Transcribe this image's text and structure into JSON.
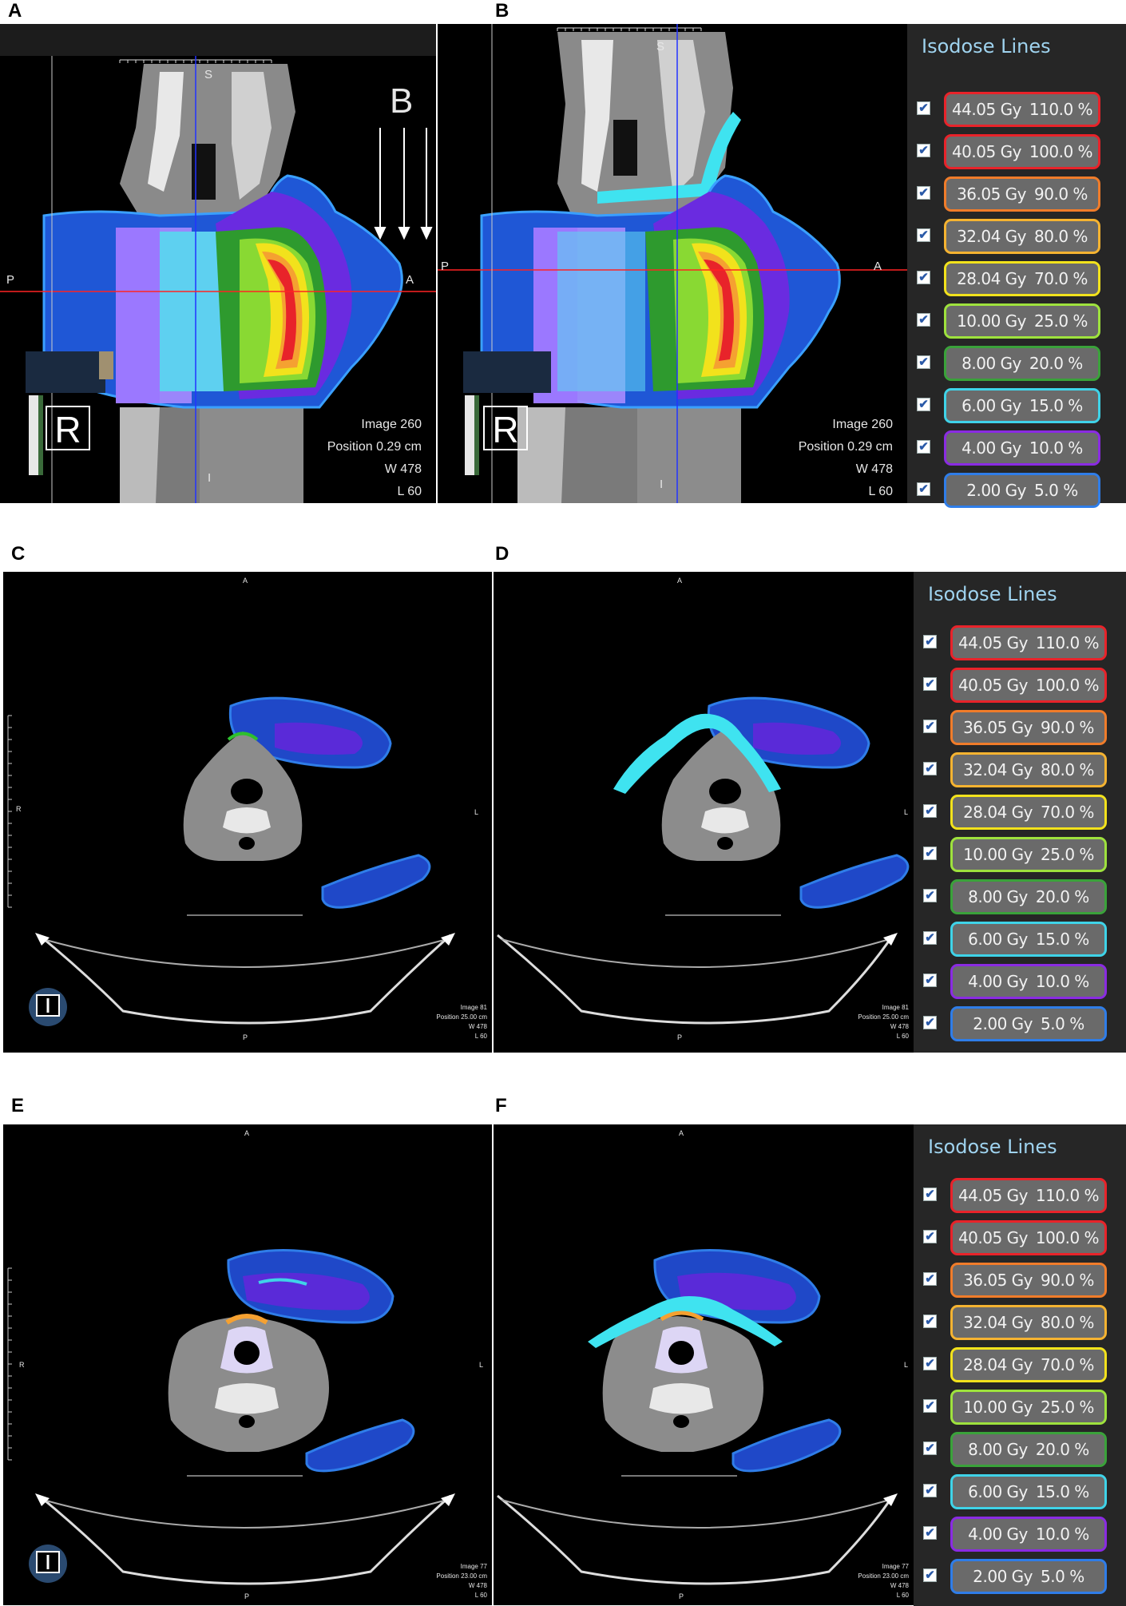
{
  "panels": [
    {
      "id": "A",
      "letter": "A"
    },
    {
      "id": "B",
      "letter": "B"
    },
    {
      "id": "C",
      "letter": "C"
    },
    {
      "id": "D",
      "letter": "D"
    },
    {
      "id": "E",
      "letter": "E"
    },
    {
      "id": "F",
      "letter": "F"
    }
  ],
  "sagittal": {
    "A": {
      "S": "S",
      "I": "I",
      "P": "P",
      "A": "A",
      "arrow_label": "B",
      "orient": "R",
      "info": [
        "Image 260",
        "Position  0.29 cm",
        "W  478",
        "L   60"
      ]
    },
    "B": {
      "S": "S",
      "I": "I",
      "P": "P",
      "A": "A",
      "orient": "R",
      "info": [
        "Image  260",
        "Position  0.29 cm",
        "W  478",
        "L   60"
      ]
    }
  },
  "axial": {
    "C": {
      "A": "A",
      "P": "P",
      "R": "R",
      "L": "L",
      "orient": "I",
      "info": [
        "Image   81",
        "Position  25.00 cm",
        "W  478",
        "L   60"
      ]
    },
    "D": {
      "A": "A",
      "P": "P",
      "L": "L",
      "info": [
        "Image   81",
        "Position  25.00 cm",
        "W  478",
        "L   60"
      ]
    },
    "E": {
      "A": "A",
      "P": "P",
      "R": "R",
      "L": "L",
      "orient": "I",
      "info": [
        "Image   77",
        "Position  23.00 cm",
        "W  478",
        "L   60"
      ]
    },
    "F": {
      "A": "A",
      "P": "P",
      "L": "L",
      "info": [
        "Image   77",
        "Position  23.00 cm",
        "W  478",
        "L   60"
      ]
    }
  },
  "isodose": {
    "title": "Isodose Lines",
    "lines": [
      {
        "dose": "44.05 Gy",
        "pct": "110.0 %",
        "color": "#e8232a"
      },
      {
        "dose": "40.05 Gy",
        "pct": "100.0 %",
        "color": "#e8232a"
      },
      {
        "dose": "36.05 Gy",
        "pct": "90.0 %",
        "color": "#f07c2a"
      },
      {
        "dose": "32.04 Gy",
        "pct": "80.0 %",
        "color": "#f5b331"
      },
      {
        "dose": "28.04 Gy",
        "pct": "70.0 %",
        "color": "#f2e21c"
      },
      {
        "dose": "10.00 Gy",
        "pct": "25.0 %",
        "color": "#9ee23d"
      },
      {
        "dose": "8.00 Gy",
        "pct": "20.0 %",
        "color": "#3aa23a"
      },
      {
        "dose": "6.00 Gy",
        "pct": "15.0 %",
        "color": "#3fd3e8"
      },
      {
        "dose": "4.00 Gy",
        "pct": "10.0 %",
        "color": "#8a2be2"
      },
      {
        "dose": "2.00 Gy",
        "pct": "5.0 %",
        "color": "#2f7de8"
      }
    ]
  }
}
